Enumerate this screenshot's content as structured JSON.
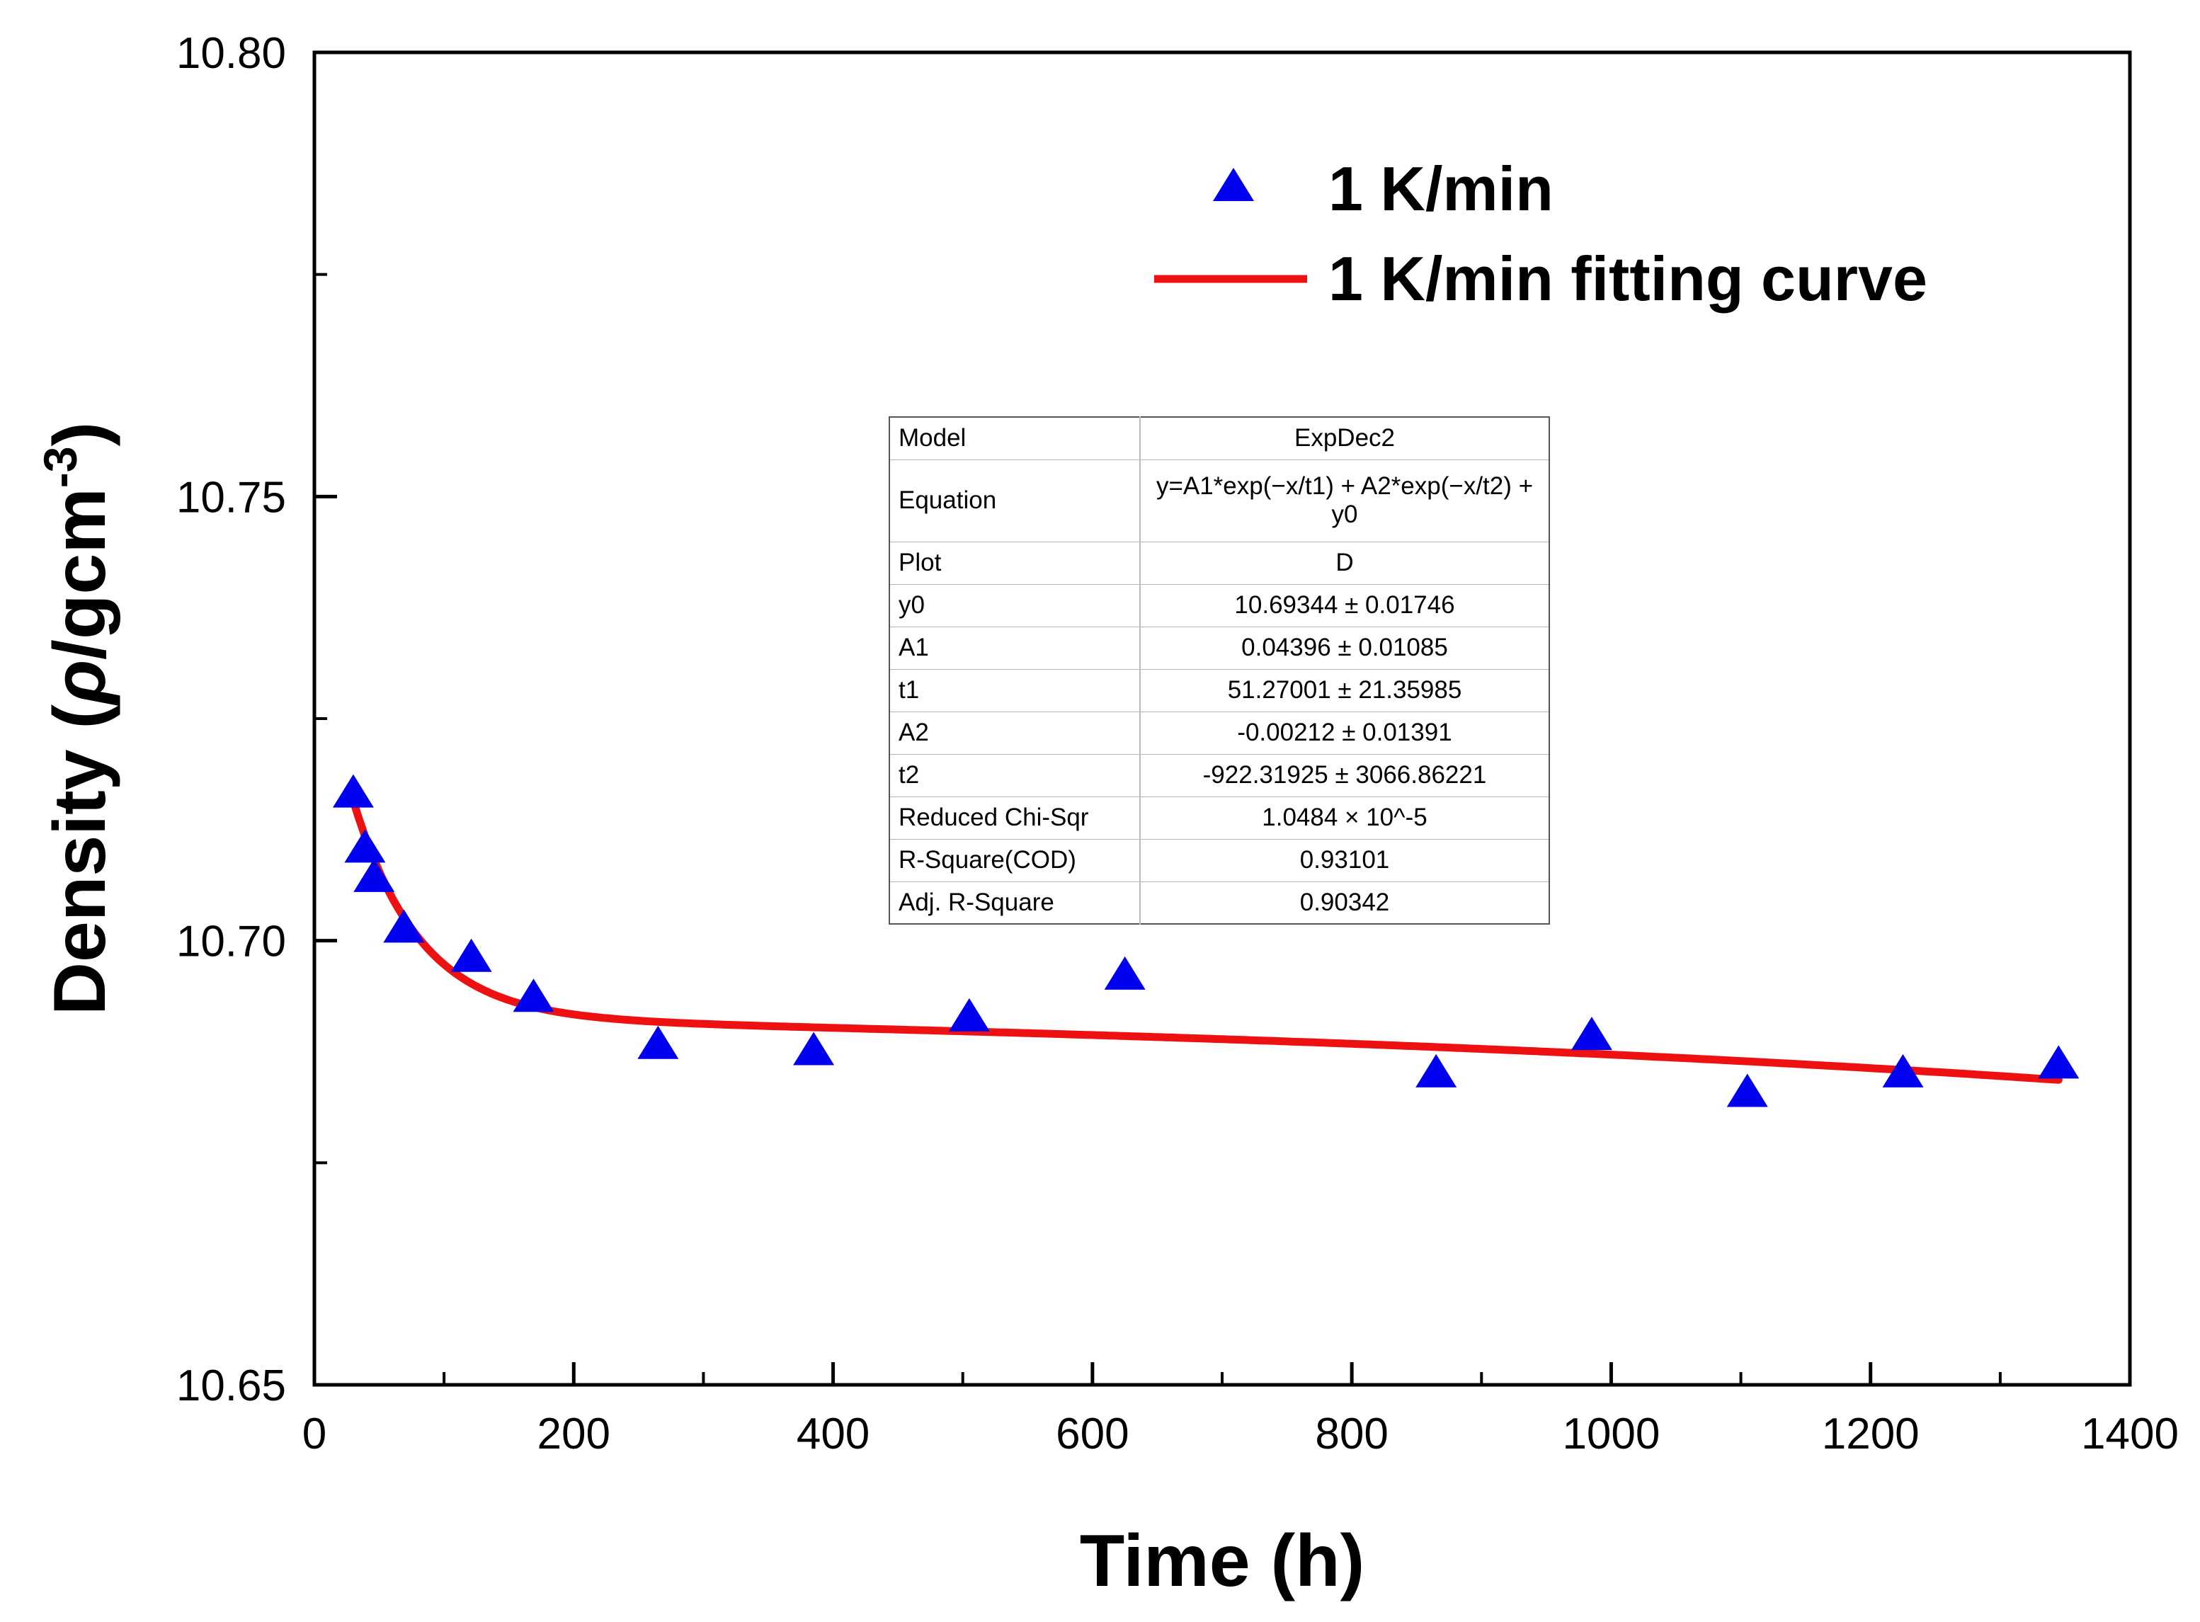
{
  "chart_data": {
    "type": "scatter",
    "xlabel": "Time (h)",
    "ylabel_parts": {
      "prefix": "Density (",
      "rho": "ρ",
      "unit": "/gcm",
      "exp": "-3",
      "suffix": ")"
    },
    "xlim": [
      0,
      1400
    ],
    "ylim": [
      10.65,
      10.8
    ],
    "x_ticks": [
      0,
      200,
      400,
      600,
      800,
      1000,
      1200,
      1400
    ],
    "x_tick_labels": [
      "0",
      "200",
      "400",
      "600",
      "800",
      "1000",
      "1200",
      "1400"
    ],
    "y_ticks": [
      10.65,
      10.7,
      10.75,
      10.8
    ],
    "y_tick_labels": [
      "10.65",
      "10.70",
      "10.75",
      "10.80"
    ],
    "series": [
      {
        "name": "1 K/min",
        "kind": "scatter",
        "marker": "triangle",
        "color": "#0000ee",
        "x": [
          30,
          39,
          46,
          69,
          121,
          169,
          265,
          385,
          505,
          625,
          865,
          985,
          1105,
          1225,
          1345
        ],
        "y": [
          10.7165,
          10.7103,
          10.707,
          10.7013,
          10.698,
          10.6935,
          10.6882,
          10.6875,
          10.6913,
          10.696,
          10.685,
          10.6892,
          10.6828,
          10.685,
          10.686
        ]
      },
      {
        "name": "1 K/min fitting curve",
        "kind": "line",
        "color": "#ee1111",
        "model": "ExpDec2",
        "params": {
          "y0": 10.69344,
          "A1": 0.04396,
          "t1": 51.27001,
          "A2": -0.00212,
          "t2": -922.31925
        },
        "x_range": [
          30,
          1345
        ]
      }
    ],
    "legend": {
      "position": "top-right",
      "entries": [
        "1 K/min",
        "1 K/min fitting curve"
      ]
    }
  },
  "fit_table": {
    "rows": [
      {
        "label": "Model",
        "value": "ExpDec2"
      },
      {
        "label": "Equation",
        "value": "y=A1*exp(−x/t1) + A2*exp(−x/t2) + y0"
      },
      {
        "label": "Plot",
        "value": "D"
      },
      {
        "label": "y0",
        "value": "10.69344 ± 0.01746"
      },
      {
        "label": "A1",
        "value": "0.04396 ± 0.01085"
      },
      {
        "label": "t1",
        "value": "51.27001 ± 21.35985"
      },
      {
        "label": "A2",
        "value": "-0.00212 ± 0.01391"
      },
      {
        "label": "t2",
        "value": "-922.31925 ± 3066.86221"
      },
      {
        "label": "Reduced Chi-Sqr",
        "value": "1.0484 × 10^-5"
      },
      {
        "label": "R-Square(COD)",
        "value": "0.93101"
      },
      {
        "label": "Adj. R-Square",
        "value": "0.90342"
      }
    ]
  }
}
